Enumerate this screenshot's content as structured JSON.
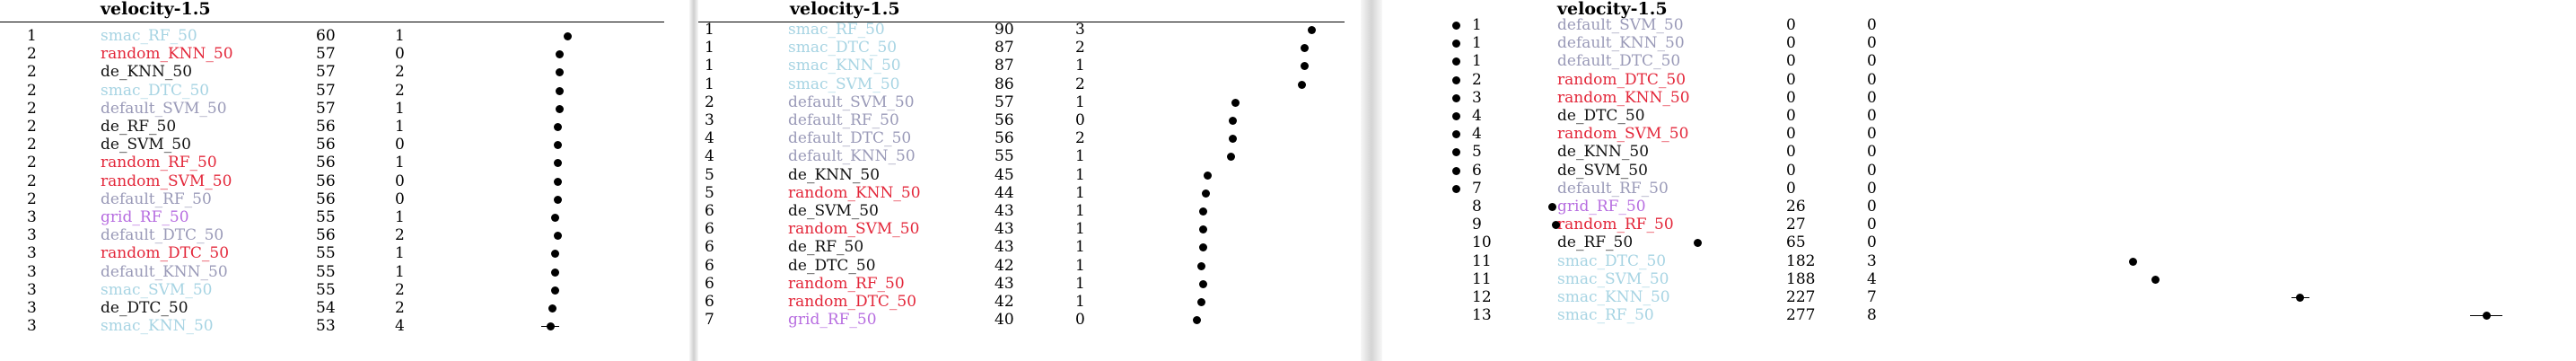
{
  "colors": {
    "random": "#e3273a",
    "default": "#9a9ab8",
    "smac": "#a7d4e3",
    "grid": "#b76de0",
    "de": "#111111"
  },
  "panels": [
    {
      "title": "velocity-1.5",
      "rows": [
        {
          "rank": "1",
          "method": "smac_RF_50",
          "family": "smac",
          "score": "60",
          "wins": "1",
          "value": 60
        },
        {
          "rank": "2",
          "method": "random_KNN_50",
          "family": "random",
          "score": "57",
          "wins": "0",
          "value": 57
        },
        {
          "rank": "2",
          "method": "de_KNN_50",
          "family": "de",
          "score": "57",
          "wins": "2",
          "value": 57
        },
        {
          "rank": "2",
          "method": "smac_DTC_50",
          "family": "smac",
          "score": "57",
          "wins": "2",
          "value": 57
        },
        {
          "rank": "2",
          "method": "default_SVM_50",
          "family": "default",
          "score": "57",
          "wins": "1",
          "value": 57
        },
        {
          "rank": "2",
          "method": "de_RF_50",
          "family": "de",
          "score": "56",
          "wins": "1",
          "value": 56
        },
        {
          "rank": "2",
          "method": "de_SVM_50",
          "family": "de",
          "score": "56",
          "wins": "0",
          "value": 56
        },
        {
          "rank": "2",
          "method": "random_RF_50",
          "family": "random",
          "score": "56",
          "wins": "1",
          "value": 56
        },
        {
          "rank": "2",
          "method": "random_SVM_50",
          "family": "random",
          "score": "56",
          "wins": "0",
          "value": 56
        },
        {
          "rank": "2",
          "method": "default_RF_50",
          "family": "default",
          "score": "56",
          "wins": "0",
          "value": 56
        },
        {
          "rank": "3",
          "method": "grid_RF_50",
          "family": "grid",
          "score": "55",
          "wins": "1",
          "value": 55
        },
        {
          "rank": "3",
          "method": "default_DTC_50",
          "family": "default",
          "score": "56",
          "wins": "2",
          "value": 56
        },
        {
          "rank": "3",
          "method": "random_DTC_50",
          "family": "random",
          "score": "55",
          "wins": "1",
          "value": 55
        },
        {
          "rank": "3",
          "method": "default_KNN_50",
          "family": "default",
          "score": "55",
          "wins": "1",
          "value": 55
        },
        {
          "rank": "3",
          "method": "smac_SVM_50",
          "family": "smac",
          "score": "55",
          "wins": "2",
          "value": 55
        },
        {
          "rank": "3",
          "method": "de_DTC_50",
          "family": "de",
          "score": "54",
          "wins": "2",
          "value": 54
        },
        {
          "rank": "3",
          "method": "smac_KNN_50",
          "family": "smac",
          "score": "53",
          "wins": "4",
          "value": 53
        }
      ]
    },
    {
      "title": "velocity-1.5",
      "rows": [
        {
          "rank": "1",
          "method": "smac_RF_50",
          "family": "smac",
          "score": "90",
          "wins": "3",
          "value": 90
        },
        {
          "rank": "1",
          "method": "smac_DTC_50",
          "family": "smac",
          "score": "87",
          "wins": "2",
          "value": 87
        },
        {
          "rank": "1",
          "method": "smac_KNN_50",
          "family": "smac",
          "score": "87",
          "wins": "1",
          "value": 87
        },
        {
          "rank": "1",
          "method": "smac_SVM_50",
          "family": "smac",
          "score": "86",
          "wins": "2",
          "value": 86
        },
        {
          "rank": "2",
          "method": "default_SVM_50",
          "family": "default",
          "score": "57",
          "wins": "1",
          "value": 57
        },
        {
          "rank": "3",
          "method": "default_RF_50",
          "family": "default",
          "score": "56",
          "wins": "0",
          "value": 56
        },
        {
          "rank": "4",
          "method": "default_DTC_50",
          "family": "default",
          "score": "56",
          "wins": "2",
          "value": 56
        },
        {
          "rank": "4",
          "method": "default_KNN_50",
          "family": "default",
          "score": "55",
          "wins": "1",
          "value": 55
        },
        {
          "rank": "5",
          "method": "de_KNN_50",
          "family": "de",
          "score": "45",
          "wins": "1",
          "value": 45
        },
        {
          "rank": "5",
          "method": "random_KNN_50",
          "family": "random",
          "score": "44",
          "wins": "1",
          "value": 44
        },
        {
          "rank": "6",
          "method": "de_SVM_50",
          "family": "de",
          "score": "43",
          "wins": "1",
          "value": 43
        },
        {
          "rank": "6",
          "method": "random_SVM_50",
          "family": "random",
          "score": "43",
          "wins": "1",
          "value": 43
        },
        {
          "rank": "6",
          "method": "de_RF_50",
          "family": "de",
          "score": "43",
          "wins": "1",
          "value": 43
        },
        {
          "rank": "6",
          "method": "de_DTC_50",
          "family": "de",
          "score": "42",
          "wins": "1",
          "value": 42
        },
        {
          "rank": "6",
          "method": "random_RF_50",
          "family": "random",
          "score": "43",
          "wins": "1",
          "value": 43
        },
        {
          "rank": "6",
          "method": "random_DTC_50",
          "family": "random",
          "score": "42",
          "wins": "1",
          "value": 42
        },
        {
          "rank": "7",
          "method": "grid_RF_50",
          "family": "grid",
          "score": "40",
          "wins": "0",
          "value": 40
        }
      ]
    },
    {
      "title": "velocity-1.5",
      "rows": [
        {
          "rank": "1",
          "method": "default_SVM_50",
          "family": "default",
          "score": "0",
          "wins": "0",
          "value": 0
        },
        {
          "rank": "1",
          "method": "default_KNN_50",
          "family": "default",
          "score": "0",
          "wins": "0",
          "value": 0
        },
        {
          "rank": "1",
          "method": "default_DTC_50",
          "family": "default",
          "score": "0",
          "wins": "0",
          "value": 0
        },
        {
          "rank": "2",
          "method": "random_DTC_50",
          "family": "random",
          "score": "0",
          "wins": "0",
          "value": 0
        },
        {
          "rank": "3",
          "method": "random_KNN_50",
          "family": "random",
          "score": "0",
          "wins": "0",
          "value": 0
        },
        {
          "rank": "4",
          "method": "de_DTC_50",
          "family": "de",
          "score": "0",
          "wins": "0",
          "value": 0
        },
        {
          "rank": "4",
          "method": "random_SVM_50",
          "family": "random",
          "score": "0",
          "wins": "0",
          "value": 0
        },
        {
          "rank": "5",
          "method": "de_KNN_50",
          "family": "de",
          "score": "0",
          "wins": "0",
          "value": 0
        },
        {
          "rank": "6",
          "method": "de_SVM_50",
          "family": "de",
          "score": "0",
          "wins": "0",
          "value": 0
        },
        {
          "rank": "7",
          "method": "default_RF_50",
          "family": "default",
          "score": "0",
          "wins": "0",
          "value": 0
        },
        {
          "rank": "8",
          "method": "grid_RF_50",
          "family": "grid",
          "score": "26",
          "wins": "0",
          "value": 26
        },
        {
          "rank": "9",
          "method": "random_RF_50",
          "family": "random",
          "score": "27",
          "wins": "0",
          "value": 27
        },
        {
          "rank": "10",
          "method": "de_RF_50",
          "family": "de",
          "score": "65",
          "wins": "0",
          "value": 65
        },
        {
          "rank": "11",
          "method": "smac_DTC_50",
          "family": "smac",
          "score": "182",
          "wins": "3",
          "value": 182
        },
        {
          "rank": "11",
          "method": "smac_SVM_50",
          "family": "smac",
          "score": "188",
          "wins": "4",
          "value": 188
        },
        {
          "rank": "12",
          "method": "smac_KNN_50",
          "family": "smac",
          "score": "227",
          "wins": "7",
          "value": 227
        },
        {
          "rank": "13",
          "method": "smac_RF_50",
          "family": "smac",
          "score": "277",
          "wins": "8",
          "value": 277
        }
      ]
    }
  ]
}
